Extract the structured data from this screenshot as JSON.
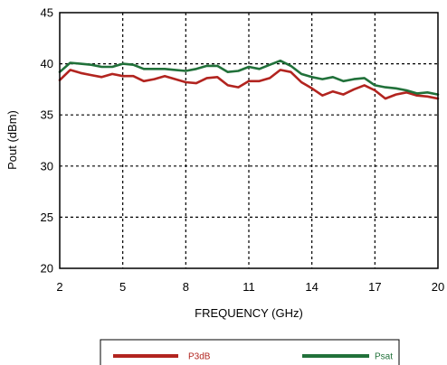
{
  "chart_data": {
    "type": "line",
    "xlabel": "FREQUENCY (GHz)",
    "ylabel": "Pout (dBm)",
    "xlim": [
      2,
      20
    ],
    "ylim": [
      20,
      45
    ],
    "xticks": [
      "2",
      "5",
      "8",
      "11",
      "14",
      "17",
      "20"
    ],
    "yticks": [
      "20",
      "25",
      "30",
      "35",
      "40",
      "45"
    ],
    "grid": true,
    "legend_position": "bottom",
    "series": [
      {
        "name": "P3dB",
        "color": "#b2241f",
        "x": [
          2,
          2.5,
          3,
          3.5,
          4,
          4.5,
          5,
          5.5,
          6,
          6.5,
          7,
          7.5,
          8,
          8.5,
          9,
          9.5,
          10,
          10.5,
          11,
          11.5,
          12,
          12.5,
          13,
          13.5,
          14,
          14.5,
          15,
          15.5,
          16,
          16.5,
          17,
          17.5,
          18,
          18.5,
          19,
          19.5,
          20
        ],
        "values": [
          38.4,
          39.4,
          39.1,
          38.9,
          38.7,
          39.0,
          38.8,
          38.8,
          38.3,
          38.5,
          38.8,
          38.5,
          38.2,
          38.1,
          38.6,
          38.7,
          37.9,
          37.7,
          38.3,
          38.3,
          38.6,
          39.4,
          39.2,
          38.2,
          37.6,
          36.9,
          37.3,
          37.0,
          37.5,
          37.9,
          37.4,
          36.6,
          37.0,
          37.2,
          36.9,
          36.8,
          36.6
        ]
      },
      {
        "name": "Psat",
        "color": "#21713a",
        "x": [
          2,
          2.5,
          3,
          3.5,
          4,
          4.5,
          5,
          5.5,
          6,
          6.5,
          7,
          7.5,
          8,
          8.5,
          9,
          9.5,
          10,
          10.5,
          11,
          11.5,
          12,
          12.5,
          13,
          13.5,
          14,
          14.5,
          15,
          15.5,
          16,
          16.5,
          17,
          17.5,
          18,
          18.5,
          19,
          19.5,
          20
        ],
        "values": [
          39.2,
          40.1,
          40.0,
          39.9,
          39.7,
          39.7,
          40.0,
          39.9,
          39.5,
          39.5,
          39.5,
          39.4,
          39.3,
          39.5,
          39.8,
          39.8,
          39.2,
          39.3,
          39.7,
          39.5,
          39.9,
          40.3,
          39.8,
          39.0,
          38.7,
          38.5,
          38.7,
          38.3,
          38.5,
          38.6,
          37.9,
          37.7,
          37.6,
          37.4,
          37.1,
          37.2,
          37.0
        ]
      }
    ]
  }
}
